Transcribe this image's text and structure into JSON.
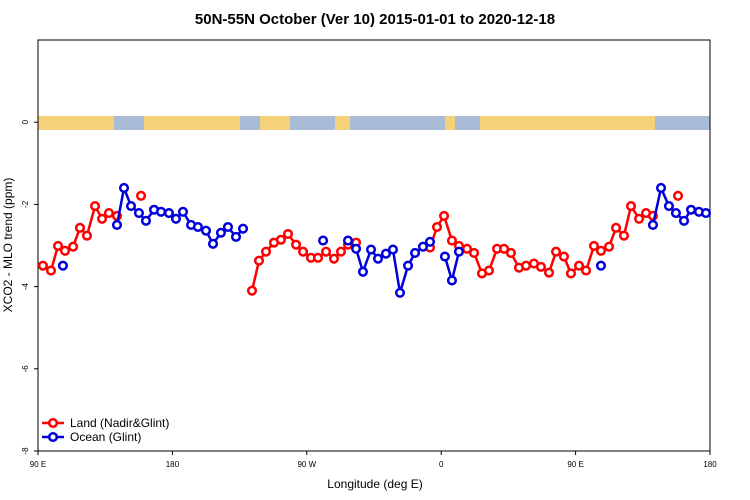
{
  "chart_data": {
    "type": "line",
    "title": "50N-55N October (Ver 10)   2015-01-01 to 2020-12-18",
    "x_label": "Longitude (deg E)",
    "y_label": "XCO2 - MLO trend (ppm)",
    "xlim": [
      90,
      540
    ],
    "ylim": [
      -8,
      2
    ],
    "xticks": [
      {
        "value": 90,
        "label": "90 E"
      },
      {
        "value": 180,
        "label": "180"
      },
      {
        "value": 270,
        "label": "90 W"
      },
      {
        "value": 360,
        "label": "0"
      },
      {
        "value": 450,
        "label": "90 E"
      },
      {
        "value": 540,
        "label": "180"
      }
    ],
    "yticks": [
      0,
      -2,
      -4,
      -6,
      -8
    ],
    "legend": "bottomleft",
    "series": [
      {
        "name": "Land (Nadir&Glint)",
        "color": "#ff0000",
        "x": [
          93.3,
          98.7,
          103.4,
          108.1,
          113.5,
          118.1,
          122.8,
          128.2,
          132.9,
          137.5,
          142.9,
          null,
          159.0,
          null,
          233.3,
          238.0,
          242.7,
          248.0,
          252.7,
          257.4,
          262.8,
          267.5,
          272.8,
          277.5,
          282.9,
          288.2,
          292.9,
          297.6,
          303.0,
          null,
          352.5,
          357.2,
          361.9,
          367.2,
          371.9,
          377.3,
          382.0,
          387.3,
          392.0,
          397.4,
          402.1,
          406.7,
          412.1,
          416.8,
          422.1,
          426.8,
          432.2,
          436.9,
          442.2,
          446.9,
          452.3,
          457.0,
          462.3,
          467.0,
          472.4,
          477.1,
          482.4,
          487.1,
          492.5,
          497.2,
          501.8,
          null,
          518.6
        ],
        "values": [
          -3.49,
          -3.61,
          -3.01,
          -3.13,
          -3.03,
          -2.57,
          -2.76,
          -2.04,
          -2.35,
          -2.21,
          -2.28,
          null,
          -1.79,
          null,
          -4.1,
          -3.37,
          -3.15,
          -2.93,
          -2.86,
          -2.72,
          -2.98,
          -3.15,
          -3.3,
          -3.3,
          -3.15,
          -3.32,
          -3.15,
          -2.98,
          -2.93,
          null,
          -3.05,
          -2.55,
          -2.28,
          -2.88,
          -3.01,
          -3.08,
          -3.18,
          -3.68,
          -3.61,
          -3.08,
          -3.08,
          -3.18,
          -3.54,
          -3.49,
          -3.44,
          -3.52,
          -3.66,
          -3.15,
          -3.27,
          -3.68,
          -3.49,
          -3.61,
          -3.01,
          -3.13,
          -3.03,
          -2.57,
          -2.76,
          -2.04,
          -2.35,
          -2.21,
          -2.28,
          null,
          -1.79
        ]
      },
      {
        "name": "Ocean (Glint)",
        "color": "#0000dd",
        "x": [
          106.7,
          null,
          142.9,
          147.6,
          152.3,
          157.6,
          162.3,
          167.7,
          172.4,
          177.7,
          182.4,
          187.1,
          192.5,
          197.1,
          202.5,
          207.2,
          212.5,
          217.2,
          222.6,
          227.3,
          null,
          280.9,
          null,
          297.6,
          303.0,
          307.6,
          313.0,
          317.7,
          323.0,
          327.7,
          332.4,
          337.8,
          342.5,
          347.8,
          352.5,
          null,
          362.5,
          367.2,
          371.9,
          null,
          467.0,
          null,
          501.8,
          507.2,
          512.5,
          517.2,
          522.6,
          527.3,
          532.6,
          537.3
        ],
        "values": [
          -3.49,
          null,
          -2.5,
          -1.6,
          -2.04,
          -2.21,
          -2.4,
          -2.13,
          -2.18,
          -2.21,
          -2.35,
          -2.18,
          -2.5,
          -2.55,
          -2.64,
          -2.96,
          -2.69,
          -2.55,
          -2.79,
          -2.59,
          null,
          -2.88,
          null,
          -2.88,
          -3.08,
          -3.64,
          -3.1,
          -3.32,
          -3.2,
          -3.1,
          -4.15,
          -3.49,
          -3.18,
          -3.03,
          -2.91,
          null,
          -3.27,
          -3.85,
          -3.15,
          null,
          -3.49,
          null,
          -2.5,
          -1.6,
          -2.04,
          -2.21,
          -2.4,
          -2.13,
          -2.18,
          -2.21
        ]
      }
    ]
  }
}
